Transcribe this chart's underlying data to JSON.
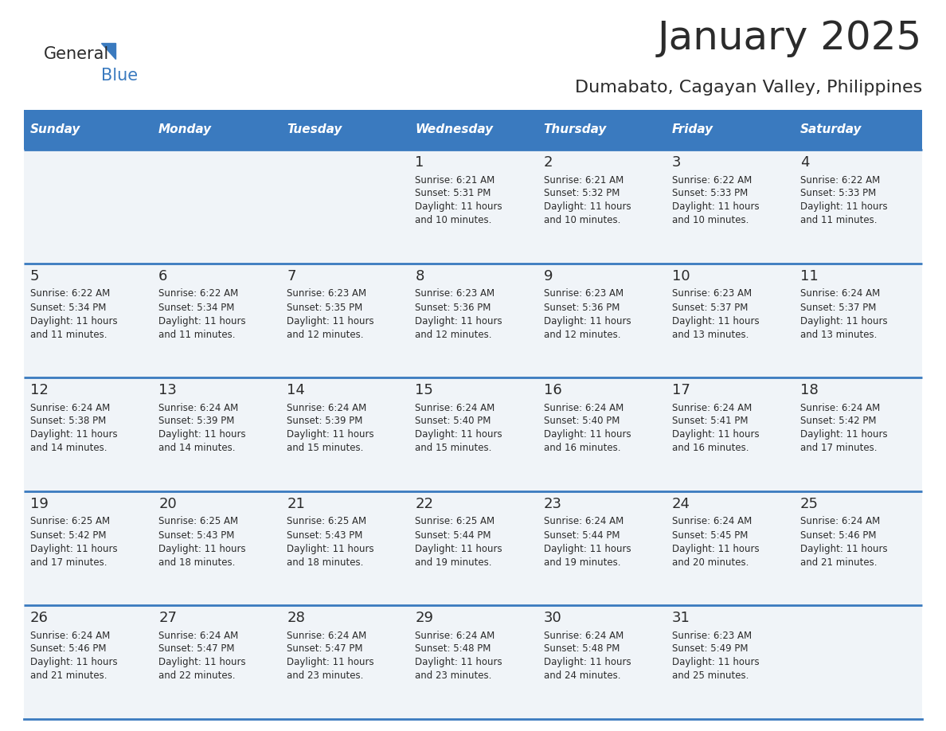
{
  "title": "January 2025",
  "subtitle": "Dumabato, Cagayan Valley, Philippines",
  "days_of_week": [
    "Sunday",
    "Monday",
    "Tuesday",
    "Wednesday",
    "Thursday",
    "Friday",
    "Saturday"
  ],
  "header_bg": "#3a7abf",
  "header_text": "#ffffff",
  "cell_bg": "#f0f4f8",
  "cell_bg_white": "#ffffff",
  "row_line_color": "#3a7abf",
  "title_color": "#2b2b2b",
  "subtitle_color": "#2b2b2b",
  "day_num_color": "#2b2b2b",
  "cell_text_color": "#2b2b2b",
  "calendar_data": [
    [
      null,
      null,
      null,
      {
        "day": 1,
        "sunrise": "6:21 AM",
        "sunset": "5:31 PM",
        "daylight_min": "10 minutes."
      },
      {
        "day": 2,
        "sunrise": "6:21 AM",
        "sunset": "5:32 PM",
        "daylight_min": "10 minutes."
      },
      {
        "day": 3,
        "sunrise": "6:22 AM",
        "sunset": "5:33 PM",
        "daylight_min": "10 minutes."
      },
      {
        "day": 4,
        "sunrise": "6:22 AM",
        "sunset": "5:33 PM",
        "daylight_min": "11 minutes."
      }
    ],
    [
      {
        "day": 5,
        "sunrise": "6:22 AM",
        "sunset": "5:34 PM",
        "daylight_min": "11 minutes."
      },
      {
        "day": 6,
        "sunrise": "6:22 AM",
        "sunset": "5:34 PM",
        "daylight_min": "11 minutes."
      },
      {
        "day": 7,
        "sunrise": "6:23 AM",
        "sunset": "5:35 PM",
        "daylight_min": "12 minutes."
      },
      {
        "day": 8,
        "sunrise": "6:23 AM",
        "sunset": "5:36 PM",
        "daylight_min": "12 minutes."
      },
      {
        "day": 9,
        "sunrise": "6:23 AM",
        "sunset": "5:36 PM",
        "daylight_min": "12 minutes."
      },
      {
        "day": 10,
        "sunrise": "6:23 AM",
        "sunset": "5:37 PM",
        "daylight_min": "13 minutes."
      },
      {
        "day": 11,
        "sunrise": "6:24 AM",
        "sunset": "5:37 PM",
        "daylight_min": "13 minutes."
      }
    ],
    [
      {
        "day": 12,
        "sunrise": "6:24 AM",
        "sunset": "5:38 PM",
        "daylight_min": "14 minutes."
      },
      {
        "day": 13,
        "sunrise": "6:24 AM",
        "sunset": "5:39 PM",
        "daylight_min": "14 minutes."
      },
      {
        "day": 14,
        "sunrise": "6:24 AM",
        "sunset": "5:39 PM",
        "daylight_min": "15 minutes."
      },
      {
        "day": 15,
        "sunrise": "6:24 AM",
        "sunset": "5:40 PM",
        "daylight_min": "15 minutes."
      },
      {
        "day": 16,
        "sunrise": "6:24 AM",
        "sunset": "5:40 PM",
        "daylight_min": "16 minutes."
      },
      {
        "day": 17,
        "sunrise": "6:24 AM",
        "sunset": "5:41 PM",
        "daylight_min": "16 minutes."
      },
      {
        "day": 18,
        "sunrise": "6:24 AM",
        "sunset": "5:42 PM",
        "daylight_min": "17 minutes."
      }
    ],
    [
      {
        "day": 19,
        "sunrise": "6:25 AM",
        "sunset": "5:42 PM",
        "daylight_min": "17 minutes."
      },
      {
        "day": 20,
        "sunrise": "6:25 AM",
        "sunset": "5:43 PM",
        "daylight_min": "18 minutes."
      },
      {
        "day": 21,
        "sunrise": "6:25 AM",
        "sunset": "5:43 PM",
        "daylight_min": "18 minutes."
      },
      {
        "day": 22,
        "sunrise": "6:25 AM",
        "sunset": "5:44 PM",
        "daylight_min": "19 minutes."
      },
      {
        "day": 23,
        "sunrise": "6:24 AM",
        "sunset": "5:44 PM",
        "daylight_min": "19 minutes."
      },
      {
        "day": 24,
        "sunrise": "6:24 AM",
        "sunset": "5:45 PM",
        "daylight_min": "20 minutes."
      },
      {
        "day": 25,
        "sunrise": "6:24 AM",
        "sunset": "5:46 PM",
        "daylight_min": "21 minutes."
      }
    ],
    [
      {
        "day": 26,
        "sunrise": "6:24 AM",
        "sunset": "5:46 PM",
        "daylight_min": "21 minutes."
      },
      {
        "day": 27,
        "sunrise": "6:24 AM",
        "sunset": "5:47 PM",
        "daylight_min": "22 minutes."
      },
      {
        "day": 28,
        "sunrise": "6:24 AM",
        "sunset": "5:47 PM",
        "daylight_min": "23 minutes."
      },
      {
        "day": 29,
        "sunrise": "6:24 AM",
        "sunset": "5:48 PM",
        "daylight_min": "23 minutes."
      },
      {
        "day": 30,
        "sunrise": "6:24 AM",
        "sunset": "5:48 PM",
        "daylight_min": "24 minutes."
      },
      {
        "day": 31,
        "sunrise": "6:23 AM",
        "sunset": "5:49 PM",
        "daylight_min": "25 minutes."
      },
      null
    ]
  ]
}
